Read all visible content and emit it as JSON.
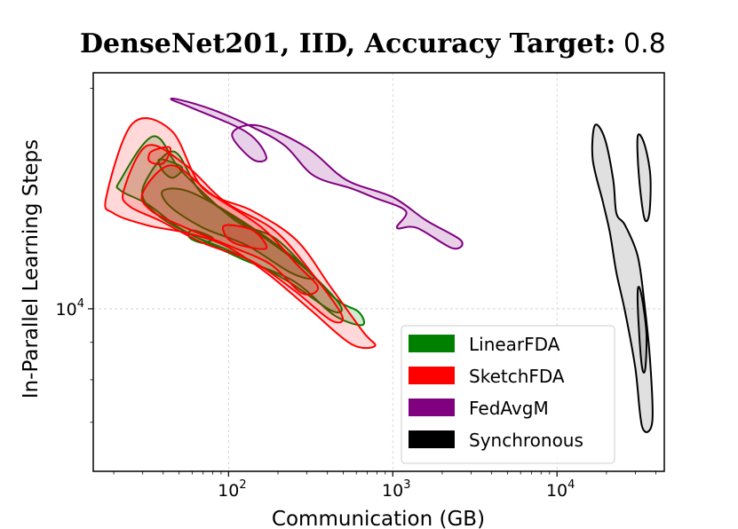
{
  "chart_data": {
    "type": "kde-contour",
    "title": "DenseNet201, IID, Accuracy Target:",
    "title_value": "0.8",
    "xlabel": "Communication (GB)",
    "ylabel": "In-Parallel Learning Steps",
    "xscale": "log",
    "yscale": "log",
    "xlim": [
      15,
      45000
    ],
    "ylim": [
      6000,
      21000
    ],
    "grid": true,
    "x_ticks": [
      {
        "value": 100,
        "base": "10",
        "exp": "2"
      },
      {
        "value": 1000,
        "base": "10",
        "exp": "3"
      },
      {
        "value": 10000,
        "base": "10",
        "exp": "4"
      }
    ],
    "y_ticks": [
      {
        "value": 10000,
        "base": "10",
        "exp": "4"
      }
    ],
    "legend_position": "lower-right",
    "series": [
      {
        "name": "LinearFDA",
        "color": "#008000",
        "fill_opacity": 0.18,
        "levels": [
          {
            "points": [
              [
                22,
                15000
              ],
              [
                35,
                17200
              ],
              [
                52,
                15400
              ],
              [
                110,
                13200
              ],
              [
                200,
                12400
              ],
              [
                430,
                10400
              ],
              [
                620,
                9900
              ],
              [
                650,
                9500
              ],
              [
                440,
                9800
              ],
              [
                250,
                10900
              ],
              [
                120,
                11700
              ],
              [
                75,
                12300
              ],
              [
                50,
                12900
              ],
              [
                32,
                13900
              ],
              [
                22,
                14500
              ]
            ]
          },
          {
            "points": [
              [
                30,
                14600
              ],
              [
                46,
                16400
              ],
              [
                70,
                14300
              ],
              [
                150,
                12700
              ],
              [
                300,
                11300
              ],
              [
                480,
                10100
              ],
              [
                420,
                9950
              ],
              [
                230,
                10900
              ],
              [
                110,
                11900
              ],
              [
                60,
                12600
              ],
              [
                36,
                13500
              ]
            ]
          },
          {
            "points": [
              [
                40,
                14500
              ],
              [
                60,
                14400
              ],
              [
                140,
                12900
              ],
              [
                280,
                11500
              ],
              [
                330,
                11000
              ],
              [
                240,
                11200
              ],
              [
                130,
                12200
              ],
              [
                70,
                12900
              ],
              [
                44,
                13800
              ]
            ]
          },
          {
            "points": [
              [
                38,
                16000
              ],
              [
                52,
                15600
              ],
              [
                46,
                15100
              ],
              [
                40,
                15400
              ]
            ]
          },
          {
            "points": [
              [
                60,
                12800
              ],
              [
                80,
                12500
              ],
              [
                70,
                12300
              ],
              [
                58,
                12500
              ]
            ]
          }
        ]
      },
      {
        "name": "SketchFDA",
        "color": "#ff0000",
        "fill_opacity": 0.15,
        "levels": [
          {
            "points": [
              [
                18,
                14200
              ],
              [
                26,
                17900
              ],
              [
                45,
                17500
              ],
              [
                70,
                14600
              ],
              [
                140,
                13600
              ],
              [
                260,
                12400
              ],
              [
                420,
                10700
              ],
              [
                660,
                9300
              ],
              [
                780,
                8900
              ],
              [
                560,
                8950
              ],
              [
                310,
                10000
              ],
              [
                170,
                11200
              ],
              [
                95,
                12200
              ],
              [
                55,
                12700
              ],
              [
                32,
                13000
              ],
              [
                20,
                13500
              ]
            ]
          },
          {
            "points": [
              [
                23,
                14500
              ],
              [
                32,
                16700
              ],
              [
                55,
                15700
              ],
              [
                95,
                14000
              ],
              [
                190,
                12800
              ],
              [
                320,
                11200
              ],
              [
                490,
                9800
              ],
              [
                420,
                9650
              ],
              [
                250,
                10600
              ],
              [
                140,
                11600
              ],
              [
                70,
                12300
              ],
              [
                38,
                13200
              ],
              [
                25,
                13800
              ]
            ]
          },
          {
            "points": [
              [
                30,
                14400
              ],
              [
                45,
                15700
              ],
              [
                80,
                14300
              ],
              [
                160,
                12900
              ],
              [
                260,
                11500
              ],
              [
                350,
                10700
              ],
              [
                280,
                10500
              ],
              [
                180,
                11500
              ],
              [
                100,
                12200
              ],
              [
                55,
                12900
              ],
              [
                34,
                13600
              ]
            ]
          },
          {
            "points": [
              [
                95,
                13000
              ],
              [
                140,
                12800
              ],
              [
                170,
                12100
              ],
              [
                120,
                12200
              ],
              [
                98,
                12500
              ]
            ]
          },
          {
            "points": [
              [
                34,
                16400
              ],
              [
                44,
                16600
              ],
              [
                40,
                15800
              ],
              [
                33,
                15900
              ]
            ]
          }
        ]
      },
      {
        "name": "FedAvgM",
        "color": "#800080",
        "fill_opacity": 0.18,
        "levels": [
          {
            "points": [
              [
                45,
                19300
              ],
              [
                60,
                18800
              ],
              [
                130,
                17400
              ],
              [
                170,
                16100
              ],
              [
                140,
                16000
              ],
              [
                105,
                17300
              ],
              [
                150,
                17800
              ],
              [
                300,
                16600
              ],
              [
                520,
                15000
              ],
              [
                1000,
                14200
              ],
              [
                1600,
                13200
              ],
              [
                2600,
                12400
              ],
              [
                2300,
                12100
              ],
              [
                1400,
                12900
              ],
              [
                1060,
                12900
              ],
              [
                1200,
                13600
              ],
              [
                760,
                14200
              ],
              [
                560,
                14600
              ],
              [
                330,
                15200
              ],
              [
                220,
                16700
              ],
              [
                140,
                17700
              ],
              [
                80,
                18700
              ],
              [
                50,
                19300
              ]
            ]
          }
        ]
      },
      {
        "name": "Synchronous",
        "color": "#000000",
        "fill_opacity": 0.12,
        "levels": [
          {
            "points": [
              [
                17000,
                17800
              ],
              [
                19500,
                17100
              ],
              [
                22000,
                15000
              ],
              [
                23000,
                13500
              ],
              [
                26000,
                13000
              ],
              [
                31000,
                11800
              ],
              [
                34000,
                10200
              ],
              [
                37000,
                8400
              ],
              [
                38000,
                7000
              ],
              [
                33000,
                6900
              ],
              [
                30000,
                8300
              ],
              [
                26000,
                9900
              ],
              [
                23000,
                11200
              ],
              [
                21000,
                12700
              ],
              [
                19000,
                14000
              ],
              [
                16500,
                16000
              ]
            ]
          },
          {
            "points": [
              [
                31000,
                17200
              ],
              [
                34000,
                16800
              ],
              [
                37000,
                15200
              ],
              [
                36500,
                13500
              ],
              [
                34000,
                13300
              ],
              [
                31500,
                15200
              ]
            ]
          },
          {
            "points": [
              [
                31000,
                10600
              ],
              [
                32500,
                10500
              ],
              [
                35000,
                9300
              ],
              [
                34500,
                8300
              ],
              [
                33000,
                8300
              ],
              [
                31500,
                9400
              ]
            ]
          }
        ]
      }
    ]
  }
}
